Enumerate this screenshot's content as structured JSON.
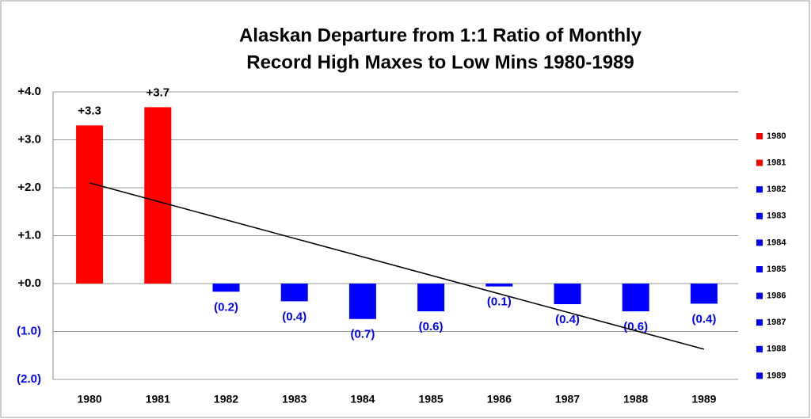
{
  "chart_data": {
    "type": "bar",
    "title": [
      "Alaskan Departure from 1:1 Ratio of Monthly",
      "Record High Maxes to Low Mins 1980-1989"
    ],
    "categories": [
      "1980",
      "1981",
      "1982",
      "1983",
      "1984",
      "1985",
      "1986",
      "1987",
      "1988",
      "1989"
    ],
    "values": [
      3.3,
      3.68,
      -0.17,
      -0.37,
      -0.74,
      -0.58,
      -0.06,
      -0.43,
      -0.58,
      -0.42
    ],
    "value_labels": [
      "+3.3",
      "+3.7",
      "(0.2)",
      "(0.4)",
      "(0.7)",
      "(0.6)",
      "(0.1)",
      "(0.4)",
      "(0.6)",
      "(0.4)"
    ],
    "colors": [
      "#ff0000",
      "#ff0000",
      "#0000ff",
      "#0000ff",
      "#0000ff",
      "#0000ff",
      "#0000ff",
      "#0000ff",
      "#0000ff",
      "#0000ff"
    ],
    "trend": [
      2.1,
      -1.37
    ],
    "ylim": [
      -2,
      4
    ],
    "yticks": [
      {
        "value": 4,
        "label": "+4.0"
      },
      {
        "value": 3,
        "label": "+3.0"
      },
      {
        "value": 2,
        "label": "+2.0"
      },
      {
        "value": 1,
        "label": "+1.0"
      },
      {
        "value": 0,
        "label": "+0.0"
      },
      {
        "value": -1,
        "label": "(1.0)"
      },
      {
        "value": -2,
        "label": "(2.0)"
      }
    ],
    "grid": true
  }
}
